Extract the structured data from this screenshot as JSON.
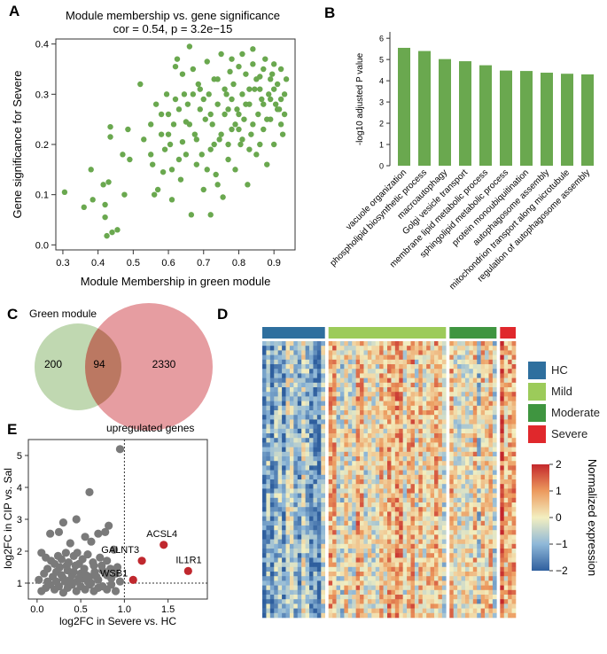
{
  "panels": {
    "a": {
      "letter": "A"
    },
    "b": {
      "letter": "B"
    },
    "c": {
      "letter": "C"
    },
    "d": {
      "letter": "D"
    },
    "e": {
      "letter": "E"
    }
  },
  "chart_data": [
    {
      "id": "A",
      "type": "scatter",
      "title": "Module membership vs. gene significance",
      "subtitle": "cor = 0.54, p = 3.2e−15",
      "xlabel": "Module Membership in green module",
      "ylabel": "Gene significance for Severe",
      "xlim": [
        0.28,
        0.96
      ],
      "ylim": [
        -0.01,
        0.41
      ],
      "xticks": [
        0.3,
        0.4,
        0.5,
        0.6,
        0.7,
        0.8,
        0.9
      ],
      "yticks": [
        0.0,
        0.1,
        0.2,
        0.3,
        0.4
      ],
      "color": "#6aa84f",
      "points": [
        [
          0.305,
          0.105
        ],
        [
          0.36,
          0.075
        ],
        [
          0.38,
          0.15
        ],
        [
          0.385,
          0.09
        ],
        [
          0.415,
          0.12
        ],
        [
          0.42,
          0.08
        ],
        [
          0.42,
          0.055
        ],
        [
          0.425,
          0.018
        ],
        [
          0.43,
          0.125
        ],
        [
          0.435,
          0.215
        ],
        [
          0.435,
          0.235
        ],
        [
          0.44,
          0.025
        ],
        [
          0.455,
          0.03
        ],
        [
          0.47,
          0.18
        ],
        [
          0.475,
          0.1
        ],
        [
          0.485,
          0.23
        ],
        [
          0.49,
          0.17
        ],
        [
          0.52,
          0.32
        ],
        [
          0.53,
          0.21
        ],
        [
          0.55,
          0.18
        ],
        [
          0.555,
          0.16
        ],
        [
          0.56,
          0.1
        ],
        [
          0.565,
          0.28
        ],
        [
          0.57,
          0.11
        ],
        [
          0.58,
          0.22
        ],
        [
          0.585,
          0.145
        ],
        [
          0.595,
          0.3
        ],
        [
          0.6,
          0.26
        ],
        [
          0.605,
          0.2
        ],
        [
          0.61,
          0.09
        ],
        [
          0.615,
          0.24
        ],
        [
          0.62,
          0.355
        ],
        [
          0.625,
          0.37
        ],
        [
          0.63,
          0.17
        ],
        [
          0.635,
          0.13
        ],
        [
          0.64,
          0.205
        ],
        [
          0.645,
          0.3
        ],
        [
          0.65,
          0.245
        ],
        [
          0.655,
          0.28
        ],
        [
          0.66,
          0.395
        ],
        [
          0.665,
          0.06
        ],
        [
          0.67,
          0.35
        ],
        [
          0.675,
          0.22
        ],
        [
          0.68,
          0.16
        ],
        [
          0.685,
          0.32
        ],
        [
          0.69,
          0.27
        ],
        [
          0.695,
          0.18
        ],
        [
          0.7,
          0.11
        ],
        [
          0.705,
          0.25
        ],
        [
          0.71,
          0.365
        ],
        [
          0.715,
          0.3
        ],
        [
          0.72,
          0.19
        ],
        [
          0.72,
          0.06
        ],
        [
          0.725,
          0.24
        ],
        [
          0.73,
          0.33
        ],
        [
          0.735,
          0.14
        ],
        [
          0.74,
          0.28
        ],
        [
          0.745,
          0.21
        ],
        [
          0.75,
          0.38
        ],
        [
          0.755,
          0.095
        ],
        [
          0.76,
          0.26
        ],
        [
          0.765,
          0.3
        ],
        [
          0.77,
          0.17
        ],
        [
          0.775,
          0.345
        ],
        [
          0.78,
          0.23
        ],
        [
          0.785,
          0.32
        ],
        [
          0.79,
          0.15
        ],
        [
          0.795,
          0.27
        ],
        [
          0.8,
          0.355
        ],
        [
          0.805,
          0.2
        ],
        [
          0.81,
          0.3
        ],
        [
          0.815,
          0.25
        ],
        [
          0.82,
          0.34
        ],
        [
          0.825,
          0.12
        ],
        [
          0.83,
          0.28
        ],
        [
          0.835,
          0.22
        ],
        [
          0.84,
          0.36
        ],
        [
          0.845,
          0.31
        ],
        [
          0.85,
          0.18
        ],
        [
          0.855,
          0.26
        ],
        [
          0.86,
          0.335
        ],
        [
          0.865,
          0.29
        ],
        [
          0.87,
          0.23
        ],
        [
          0.875,
          0.37
        ],
        [
          0.88,
          0.16
        ],
        [
          0.885,
          0.3
        ],
        [
          0.89,
          0.25
        ],
        [
          0.895,
          0.34
        ],
        [
          0.9,
          0.2
        ],
        [
          0.905,
          0.28
        ],
        [
          0.91,
          0.32
        ],
        [
          0.915,
          0.27
        ],
        [
          0.92,
          0.35
        ],
        [
          0.925,
          0.22
        ],
        [
          0.93,
          0.3
        ],
        [
          0.935,
          0.33
        ],
        [
          0.6,
          0.22
        ],
        [
          0.63,
          0.27
        ],
        [
          0.66,
          0.24
        ],
        [
          0.69,
          0.31
        ],
        [
          0.72,
          0.26
        ],
        [
          0.75,
          0.22
        ],
        [
          0.78,
          0.29
        ],
        [
          0.81,
          0.21
        ],
        [
          0.84,
          0.24
        ],
        [
          0.87,
          0.28
        ],
        [
          0.9,
          0.31
        ],
        [
          0.74,
          0.33
        ],
        [
          0.77,
          0.2
        ],
        [
          0.8,
          0.26
        ],
        [
          0.83,
          0.31
        ],
        [
          0.86,
          0.2
        ],
        [
          0.89,
          0.29
        ],
        [
          0.92,
          0.24
        ],
        [
          0.7,
          0.29
        ],
        [
          0.73,
          0.2
        ],
        [
          0.76,
          0.31
        ],
        [
          0.79,
          0.24
        ],
        [
          0.82,
          0.28
        ],
        [
          0.85,
          0.33
        ],
        [
          0.88,
          0.25
        ],
        [
          0.91,
          0.27
        ],
        [
          0.67,
          0.3
        ],
        [
          0.64,
          0.34
        ],
        [
          0.61,
          0.15
        ],
        [
          0.58,
          0.26
        ],
        [
          0.55,
          0.24
        ],
        [
          0.71,
          0.15
        ],
        [
          0.74,
          0.12
        ],
        [
          0.77,
          0.27
        ],
        [
          0.8,
          0.23
        ],
        [
          0.83,
          0.19
        ],
        [
          0.86,
          0.31
        ],
        [
          0.89,
          0.33
        ],
        [
          0.92,
          0.29
        ],
        [
          0.68,
          0.21
        ],
        [
          0.65,
          0.18
        ],
        [
          0.62,
          0.29
        ],
        [
          0.59,
          0.19
        ],
        [
          0.78,
          0.37
        ],
        [
          0.81,
          0.38
        ],
        [
          0.84,
          0.39
        ],
        [
          0.87,
          0.35
        ],
        [
          0.9,
          0.36
        ],
        [
          0.93,
          0.26
        ]
      ]
    },
    {
      "id": "B",
      "type": "bar",
      "ylabel": "-log10 adjusted P value",
      "ylim": [
        0,
        6.3
      ],
      "yticks": [
        0,
        1,
        2,
        3,
        4,
        5,
        6
      ],
      "color": "#6aa84f",
      "categories": [
        "vacuole organization",
        "phospholipid biosynthetic process",
        "macroautophagy",
        "Golgi vesicle transport",
        "membrane lipid metabolic process",
        "sphingolipid metabolic process",
        "protein monoubiquitination",
        "autophagosome assembly",
        "mitochondrion transport along microtubule",
        "regulation of autophagosome assembly"
      ],
      "values": [
        5.55,
        5.4,
        5.02,
        4.92,
        4.73,
        4.48,
        4.46,
        4.38,
        4.33,
        4.3
      ]
    },
    {
      "id": "C",
      "type": "venn",
      "sets": [
        {
          "name": "Green module",
          "color": "#b5d1a3"
        },
        {
          "name": "upregulated genes",
          "color": "#e0888c"
        }
      ],
      "only_a": "200",
      "overlap": "94",
      "only_b": "2330"
    },
    {
      "id": "D",
      "type": "heatmap",
      "colorbar_label": "Normalized expression",
      "colorbar_range": [
        -2,
        2
      ],
      "colorbar_ticks": [
        "2",
        "1",
        "0",
        "−1",
        "−2"
      ],
      "colorscale": [
        "#2f5f9e",
        "#8fb8d8",
        "#f3efc0",
        "#ec9a5e",
        "#c4282c"
      ],
      "groups": [
        {
          "name": "HC",
          "color": "#2e6f9e",
          "columns": 16
        },
        {
          "name": "Mild",
          "color": "#9ccb5a",
          "columns": 30
        },
        {
          "name": "Moderate",
          "color": "#3f9540",
          "columns": 12
        },
        {
          "name": "Severe",
          "color": "#e0282c",
          "columns": 4
        }
      ],
      "rows": 60
    },
    {
      "id": "E",
      "type": "scatter",
      "xlabel": "log2FC in Severe vs. HC",
      "ylabel": "log2FC in CIP vs. Sal",
      "xlim": [
        -0.1,
        1.95
      ],
      "ylim": [
        0.5,
        5.5
      ],
      "xticks": [
        0.0,
        0.5,
        1.0,
        1.5
      ],
      "yticks": [
        1,
        2,
        3,
        4,
        5
      ],
      "reference_lines": {
        "x": 1,
        "y": 1
      },
      "background_color": "#7a7a7a",
      "highlight_color": "#c0282e",
      "highlight": [
        {
          "label": "ACSL4",
          "x": 1.45,
          "y": 2.2
        },
        {
          "label": "GALNT3",
          "x": 1.2,
          "y": 1.7
        },
        {
          "label": "IL1R1",
          "x": 1.73,
          "y": 1.38
        },
        {
          "label": "WSB1",
          "x": 1.1,
          "y": 1.1
        }
      ],
      "points": [
        [
          0.95,
          5.2
        ],
        [
          0.6,
          3.85
        ],
        [
          0.3,
          2.9
        ],
        [
          0.45,
          3.0
        ],
        [
          0.25,
          2.6
        ],
        [
          0.7,
          2.55
        ],
        [
          0.82,
          2.8
        ],
        [
          0.78,
          2.6
        ],
        [
          0.62,
          2.3
        ],
        [
          0.55,
          2.45
        ],
        [
          0.38,
          2.25
        ],
        [
          0.15,
          2.55
        ],
        [
          0.05,
          1.95
        ],
        [
          0.1,
          1.8
        ],
        [
          0.2,
          1.6
        ],
        [
          0.28,
          1.75
        ],
        [
          0.33,
          1.95
        ],
        [
          0.42,
          1.85
        ],
        [
          0.48,
          1.6
        ],
        [
          0.52,
          1.75
        ],
        [
          0.58,
          1.9
        ],
        [
          0.65,
          1.55
        ],
        [
          0.72,
          1.8
        ],
        [
          0.8,
          1.7
        ],
        [
          0.88,
          2.05
        ],
        [
          0.92,
          1.5
        ],
        [
          0.02,
          1.1
        ],
        [
          0.08,
          1.3
        ],
        [
          0.12,
          1.45
        ],
        [
          0.18,
          1.2
        ],
        [
          0.22,
          1.35
        ],
        [
          0.26,
          1.5
        ],
        [
          0.3,
          1.15
        ],
        [
          0.35,
          1.4
        ],
        [
          0.4,
          1.25
        ],
        [
          0.44,
          1.55
        ],
        [
          0.5,
          1.3
        ],
        [
          0.54,
          1.45
        ],
        [
          0.6,
          1.2
        ],
        [
          0.66,
          1.35
        ],
        [
          0.7,
          1.1
        ],
        [
          0.75,
          1.4
        ],
        [
          0.8,
          1.25
        ],
        [
          0.85,
          1.15
        ],
        [
          0.9,
          1.3
        ],
        [
          0.95,
          1.05
        ],
        [
          0.05,
          0.75
        ],
        [
          0.1,
          0.85
        ],
        [
          0.15,
          0.95
        ],
        [
          0.2,
          0.8
        ],
        [
          0.25,
          0.9
        ],
        [
          0.3,
          0.7
        ],
        [
          0.35,
          0.85
        ],
        [
          0.4,
          0.95
        ],
        [
          0.45,
          0.75
        ],
        [
          0.5,
          0.9
        ],
        [
          0.55,
          0.8
        ],
        [
          0.6,
          0.95
        ],
        [
          0.65,
          0.75
        ],
        [
          0.7,
          0.85
        ],
        [
          0.75,
          0.9
        ],
        [
          0.8,
          0.8
        ],
        [
          0.85,
          0.95
        ],
        [
          0.9,
          0.75
        ],
        [
          0.28,
          1.25
        ],
        [
          0.32,
          1.05
        ],
        [
          0.38,
          1.1
        ],
        [
          0.46,
          1.05
        ],
        [
          0.52,
          1.15
        ],
        [
          0.58,
          1.05
        ],
        [
          0.62,
          1.0
        ],
        [
          0.68,
          1.2
        ],
        [
          0.16,
          1.7
        ],
        [
          0.24,
          1.85
        ],
        [
          0.36,
          1.65
        ],
        [
          0.46,
          1.95
        ],
        [
          0.56,
          1.25
        ],
        [
          0.64,
          1.65
        ],
        [
          0.74,
          1.55
        ],
        [
          0.84,
          1.45
        ],
        [
          0.12,
          1.05
        ],
        [
          0.42,
          1.35
        ],
        [
          0.48,
          1.15
        ],
        [
          0.34,
          1.55
        ],
        [
          0.22,
          1.05
        ]
      ]
    }
  ]
}
